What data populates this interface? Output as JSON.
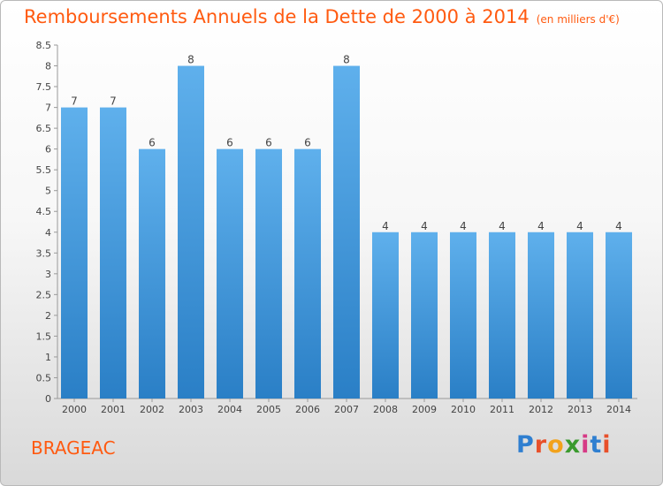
{
  "header": {
    "title": "Remboursements Annuels de la Dette de 2000 à 2014",
    "unit": "(en milliers d'€)"
  },
  "footer": {
    "commune": "BRAGEAC",
    "logo_letters": [
      "P",
      "r",
      "o",
      "x",
      "i",
      "t",
      "i"
    ]
  },
  "colors": {
    "bar_top": "#5fb0ec",
    "bar_bottom": "#2a7fc6",
    "title": "#ff5a10"
  },
  "chart_data": {
    "type": "bar",
    "categories": [
      "2000",
      "2001",
      "2002",
      "2003",
      "2004",
      "2005",
      "2006",
      "2007",
      "2008",
      "2009",
      "2010",
      "2011",
      "2012",
      "2013",
      "2014"
    ],
    "values": [
      7,
      7,
      6,
      8,
      6,
      6,
      6,
      8,
      4,
      4,
      4,
      4,
      4,
      4,
      4
    ],
    "data_labels": [
      "7",
      "7",
      "6",
      "8",
      "6",
      "6",
      "6",
      "8",
      "4",
      "4",
      "4",
      "4",
      "4",
      "4",
      "4"
    ],
    "yticks": [
      "0",
      "0.5",
      "1",
      "1.5",
      "2",
      "2.5",
      "3",
      "3.5",
      "4",
      "4.5",
      "5",
      "5.5",
      "6",
      "6.5",
      "7",
      "7.5",
      "8",
      "8.5"
    ],
    "ylim": [
      0,
      8.5
    ],
    "grid": false
  }
}
